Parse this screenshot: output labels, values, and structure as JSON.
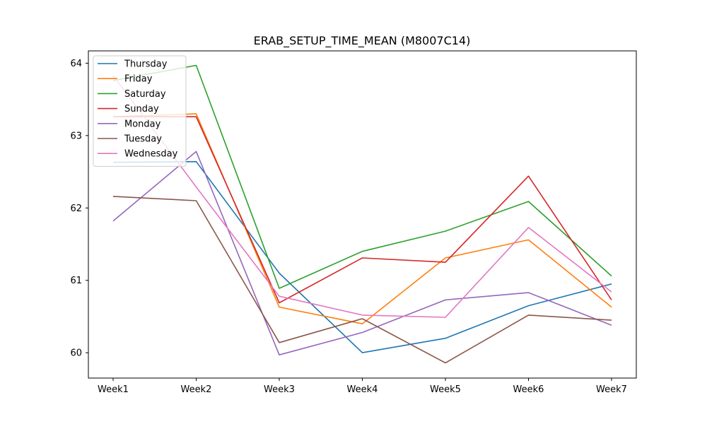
{
  "chart_data": {
    "type": "line",
    "title": "ERAB_SETUP_TIME_MEAN (M8007C14)",
    "xlabel": "",
    "ylabel": "",
    "categories": [
      "Week1",
      "Week2",
      "Week3",
      "Week4",
      "Week5",
      "Week6",
      "Week7"
    ],
    "ylim": [
      59.65,
      64.17
    ],
    "yticks": [
      60,
      61,
      62,
      63,
      64
    ],
    "grid": false,
    "legend_position": "top-left",
    "series": [
      {
        "name": "Thursday",
        "color": "#1f77b4",
        "values": [
          62.63,
          62.64,
          61.1,
          60.0,
          60.2,
          60.65,
          60.95
        ]
      },
      {
        "name": "Friday",
        "color": "#ff7f0e",
        "values": [
          63.26,
          63.3,
          60.63,
          60.4,
          61.31,
          61.56,
          60.63
        ]
      },
      {
        "name": "Saturday",
        "color": "#2ca02c",
        "values": [
          63.76,
          63.97,
          60.89,
          61.4,
          61.68,
          62.09,
          61.06
        ]
      },
      {
        "name": "Sunday",
        "color": "#d62728",
        "values": [
          63.26,
          63.26,
          60.69,
          61.31,
          61.25,
          62.44,
          60.73
        ]
      },
      {
        "name": "Monday",
        "color": "#9467bd",
        "values": [
          61.82,
          62.78,
          59.97,
          60.28,
          60.73,
          60.83,
          60.38
        ]
      },
      {
        "name": "Tuesday",
        "color": "#8c564b",
        "values": [
          62.16,
          62.1,
          60.14,
          60.47,
          59.86,
          60.52,
          60.45
        ]
      },
      {
        "name": "Wednesday",
        "color": "#e377c2",
        "values": [
          63.83,
          62.29,
          60.78,
          60.52,
          60.49,
          61.73,
          60.84
        ]
      }
    ]
  }
}
